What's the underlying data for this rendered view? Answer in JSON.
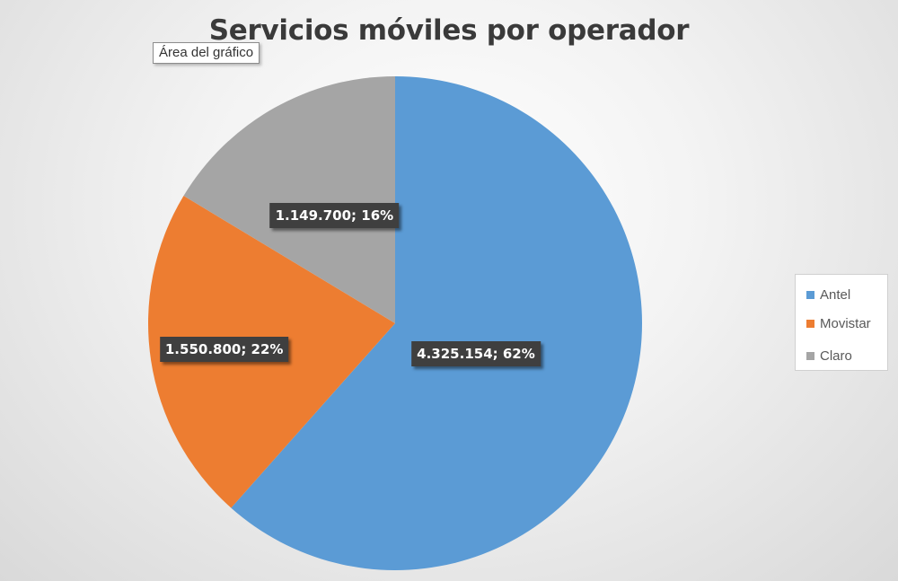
{
  "chart_data": {
    "type": "pie",
    "title": "Servicios móviles por operador",
    "categories": [
      "Antel",
      "Movistar",
      "Claro"
    ],
    "values": [
      4325154,
      1550800,
      1149700
    ],
    "percentages": [
      62,
      22,
      16
    ],
    "data_labels": [
      "4.325.154; 62%",
      "1.550.800; 22%",
      "1.149.700; 16%"
    ],
    "colors": [
      "#5b9bd5",
      "#ed7d31",
      "#a5a5a5"
    ],
    "legend_position": "right"
  },
  "tooltip": {
    "text": "Área del gráfico"
  }
}
